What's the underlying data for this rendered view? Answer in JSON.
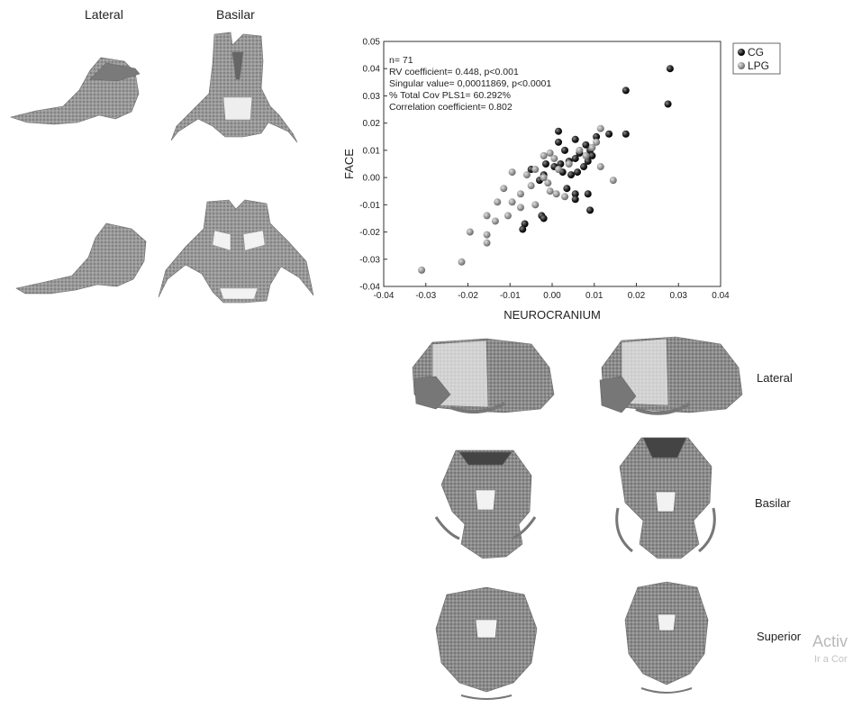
{
  "left_panel": {
    "col_labels": [
      "Lateral",
      "Basilar"
    ]
  },
  "right_panel": {
    "row_labels": [
      "Lateral",
      "Basilar",
      "Superior"
    ]
  },
  "watermark": {
    "line1": "Activ",
    "line2": "Ir a Cor"
  },
  "colors": {
    "cg": "#222222",
    "lpg": "#9a9a9a",
    "bone": "#8a8a8a",
    "bone_dark": "#5a5a5a"
  },
  "chart_data": {
    "type": "scatter",
    "xlabel": "NEUROCRANIUM",
    "ylabel": "FACE",
    "xlim": [
      -0.04,
      0.04
    ],
    "ylim": [
      -0.04,
      0.05
    ],
    "xticks": [
      "-0.04",
      "-0.03",
      "-0.02",
      "-0.01",
      "0.00",
      "0.01",
      "0.02",
      "0.03",
      "0.04"
    ],
    "yticks": [
      "-0.04",
      "-0.03",
      "-0.02",
      "-0.01",
      "0.00",
      "0.01",
      "0.02",
      "0.03",
      "0.04",
      "0.05"
    ],
    "xtick_values": [
      -0.04,
      -0.03,
      -0.02,
      -0.01,
      0,
      0.01,
      0.02,
      0.03,
      0.04
    ],
    "ytick_values": [
      -0.04,
      -0.03,
      -0.02,
      -0.01,
      0,
      0.01,
      0.02,
      0.03,
      0.04,
      0.05
    ],
    "legend_position": "top-right-outside",
    "annotations": [
      "n= 71",
      "RV coefficient= 0.448, p<0.001",
      "Singular value= 0,00011869, p<0.0001",
      "% Total Cov PLS1= 60.292%",
      "Correlation coefficient= 0.802"
    ],
    "series": [
      {
        "name": "CG",
        "points": [
          [
            0.028,
            0.04
          ],
          [
            0.0175,
            0.032
          ],
          [
            0.0275,
            0.027
          ],
          [
            0.0175,
            0.016
          ],
          [
            0.0135,
            0.016
          ],
          [
            0.0015,
            0.017
          ],
          [
            0.0015,
            0.013
          ],
          [
            0.0055,
            0.014
          ],
          [
            0.008,
            0.012
          ],
          [
            0.0105,
            0.015
          ],
          [
            0.003,
            0.01
          ],
          [
            0.009,
            0.01
          ],
          [
            0.0065,
            0.009
          ],
          [
            0.0095,
            0.008
          ],
          [
            0.0055,
            0.007
          ],
          [
            0.004,
            0.006
          ],
          [
            0.0085,
            0.006
          ],
          [
            0.002,
            0.005
          ],
          [
            -0.0015,
            0.005
          ],
          [
            0.0005,
            0.004
          ],
          [
            0.0075,
            0.004
          ],
          [
            -0.005,
            0.003
          ],
          [
            0.0025,
            0.002
          ],
          [
            0.006,
            0.002
          ],
          [
            -0.002,
            0.001
          ],
          [
            0.0045,
            0.001
          ],
          [
            -0.003,
            -0.001
          ],
          [
            0.0035,
            -0.004
          ],
          [
            0.0055,
            -0.006
          ],
          [
            0.0085,
            -0.006
          ],
          [
            -0.0025,
            -0.014
          ],
          [
            -0.002,
            -0.015
          ],
          [
            -0.0065,
            -0.017
          ],
          [
            -0.007,
            -0.019
          ],
          [
            0.0055,
            -0.008
          ],
          [
            0.009,
            -0.012
          ]
        ]
      },
      {
        "name": "LPG",
        "points": [
          [
            0.0115,
            0.018
          ],
          [
            0.0105,
            0.013
          ],
          [
            0.0095,
            0.011
          ],
          [
            0.0065,
            0.01
          ],
          [
            0.008,
            0.008
          ],
          [
            -0.0005,
            0.009
          ],
          [
            -0.002,
            0.008
          ],
          [
            0.0005,
            0.007
          ],
          [
            0.004,
            0.005
          ],
          [
            0.0115,
            0.004
          ],
          [
            0.0015,
            0.003
          ],
          [
            -0.0095,
            0.002
          ],
          [
            -0.004,
            0.003
          ],
          [
            -0.006,
            0.001
          ],
          [
            -0.002,
            0.0
          ],
          [
            0.0145,
            -0.001
          ],
          [
            -0.001,
            -0.002
          ],
          [
            -0.005,
            -0.003
          ],
          [
            -0.0115,
            -0.004
          ],
          [
            -0.0005,
            -0.005
          ],
          [
            -0.0075,
            -0.006
          ],
          [
            0.001,
            -0.006
          ],
          [
            0.003,
            -0.007
          ],
          [
            -0.013,
            -0.009
          ],
          [
            -0.0095,
            -0.009
          ],
          [
            -0.004,
            -0.01
          ],
          [
            -0.0075,
            -0.011
          ],
          [
            -0.0155,
            -0.014
          ],
          [
            -0.0105,
            -0.014
          ],
          [
            -0.0135,
            -0.016
          ],
          [
            -0.0195,
            -0.02
          ],
          [
            -0.0155,
            -0.021
          ],
          [
            -0.0155,
            -0.024
          ],
          [
            -0.0215,
            -0.031
          ],
          [
            -0.031,
            -0.034
          ]
        ]
      }
    ]
  }
}
